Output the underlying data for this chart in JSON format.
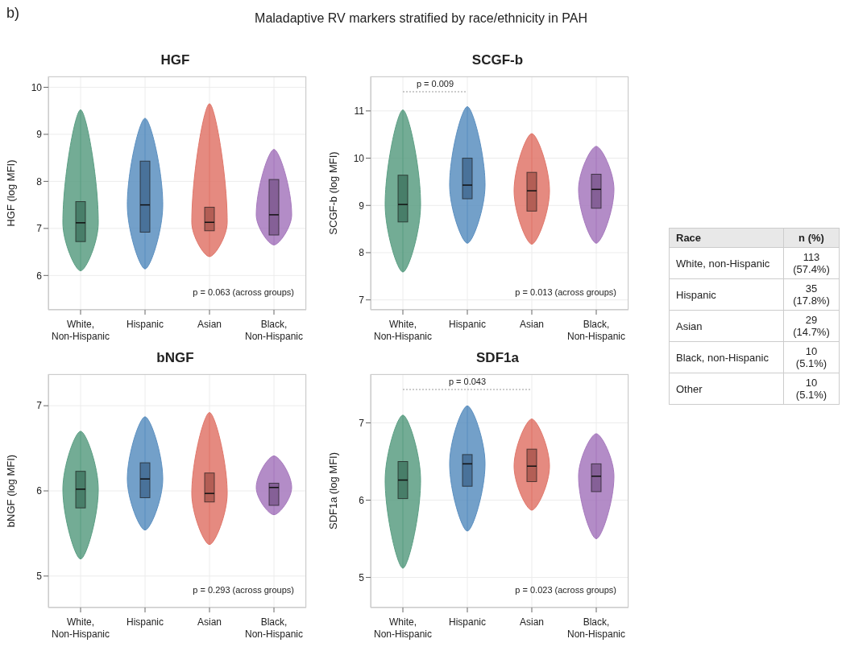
{
  "chart_data": [
    {
      "type": "other",
      "title": "Maladaptive RV markers stratified by race/ethnicity in PAH",
      "annotations": [
        "b)"
      ]
    },
    {
      "type": "box",
      "title": "HGF",
      "ylabel": "HGF (log MFI)",
      "categories": [
        "White, Non-Hispanic",
        "Hispanic",
        "Asian",
        "Black, Non-Hispanic"
      ],
      "colors": [
        "#5a9e83",
        "#5b8fc0",
        "#e0766a",
        "#a678bd"
      ],
      "ylim": [
        5.27,
        10.23
      ],
      "yticks": [
        6,
        7,
        8,
        9,
        10
      ],
      "grid": true,
      "boxes": [
        {
          "low": 6.1,
          "q1": 6.72,
          "median": 7.12,
          "q3": 7.57,
          "high": 9.52
        },
        {
          "low": 6.14,
          "q1": 6.92,
          "median": 7.5,
          "q3": 8.43,
          "high": 9.34
        },
        {
          "low": 6.4,
          "q1": 6.95,
          "median": 7.13,
          "q3": 7.45,
          "high": 9.65
        },
        {
          "low": 6.65,
          "q1": 6.86,
          "median": 7.29,
          "q3": 8.04,
          "high": 8.68
        }
      ],
      "annotations": [
        "p = 0.063 (across groups)"
      ]
    },
    {
      "type": "box",
      "title": "SCGF-b",
      "ylabel": "SCGF-b (log MFI)",
      "categories": [
        "White, Non-Hispanic",
        "Hispanic",
        "Asian",
        "Black, Non-Hispanic"
      ],
      "colors": [
        "#5a9e83",
        "#5b8fc0",
        "#e0766a",
        "#a678bd"
      ],
      "ylim": [
        6.79,
        11.73
      ],
      "yticks": [
        7,
        8,
        9,
        10,
        11
      ],
      "grid": true,
      "boxes": [
        {
          "low": 7.59,
          "q1": 8.65,
          "median": 9.02,
          "q3": 9.64,
          "high": 11.02
        },
        {
          "low": 8.2,
          "q1": 9.14,
          "median": 9.43,
          "q3": 10.0,
          "high": 11.09
        },
        {
          "low": 8.18,
          "q1": 8.88,
          "median": 9.31,
          "q3": 9.7,
          "high": 10.52
        },
        {
          "low": 8.2,
          "q1": 8.94,
          "median": 9.34,
          "q3": 9.66,
          "high": 10.25
        }
      ],
      "annotations": [
        "p = 0.013 (across groups)",
        "p = 0.009"
      ]
    },
    {
      "type": "box",
      "title": "bNGF",
      "ylabel": "bNGF (log MFI)",
      "categories": [
        "White, Non-Hispanic",
        "Hispanic",
        "Asian",
        "Black, Non-Hispanic"
      ],
      "colors": [
        "#5a9e83",
        "#5b8fc0",
        "#e0766a",
        "#a678bd"
      ],
      "ylim": [
        4.63,
        7.37
      ],
      "yticks": [
        5,
        6,
        7
      ],
      "grid": true,
      "boxes": [
        {
          "low": 5.2,
          "q1": 5.8,
          "median": 6.02,
          "q3": 6.23,
          "high": 6.7
        },
        {
          "low": 5.54,
          "q1": 5.92,
          "median": 6.14,
          "q3": 6.33,
          "high": 6.87
        },
        {
          "low": 5.37,
          "q1": 5.87,
          "median": 5.97,
          "q3": 6.21,
          "high": 6.92
        },
        {
          "low": 5.72,
          "q1": 5.83,
          "median": 6.04,
          "q3": 6.09,
          "high": 6.41
        }
      ],
      "annotations": [
        "p = 0.293 (across groups)"
      ]
    },
    {
      "type": "box",
      "title": "SDF1a",
      "ylabel": "SDF1a (log MFI)",
      "categories": [
        "White, Non-Hispanic",
        "Hispanic",
        "Asian",
        "Black, Non-Hispanic"
      ],
      "colors": [
        "#5a9e83",
        "#5b8fc0",
        "#e0766a",
        "#a678bd"
      ],
      "ylim": [
        4.61,
        7.63
      ],
      "yticks": [
        5,
        6,
        7
      ],
      "grid": true,
      "boxes": [
        {
          "low": 5.12,
          "q1": 6.02,
          "median": 6.26,
          "q3": 6.5,
          "high": 7.1
        },
        {
          "low": 5.6,
          "q1": 6.18,
          "median": 6.47,
          "q3": 6.59,
          "high": 7.22
        },
        {
          "low": 5.87,
          "q1": 6.24,
          "median": 6.44,
          "q3": 6.66,
          "high": 7.05
        },
        {
          "low": 5.5,
          "q1": 6.11,
          "median": 6.31,
          "q3": 6.47,
          "high": 6.86
        }
      ],
      "annotations": [
        "p = 0.023 (across groups)",
        "p = 0.043"
      ]
    },
    {
      "type": "other",
      "xlabel": "Race",
      "ylabel": "n (%)",
      "categories": [
        "White, non-Hispanic",
        "Hispanic",
        "Asian",
        "Black, non-Hispanic",
        "Other"
      ],
      "value_labels": [
        "113 (57.4%)",
        "35 (17.8%)",
        "29 (14.7%)",
        "10 (5.1%)",
        "10 (5.1%)"
      ]
    }
  ]
}
